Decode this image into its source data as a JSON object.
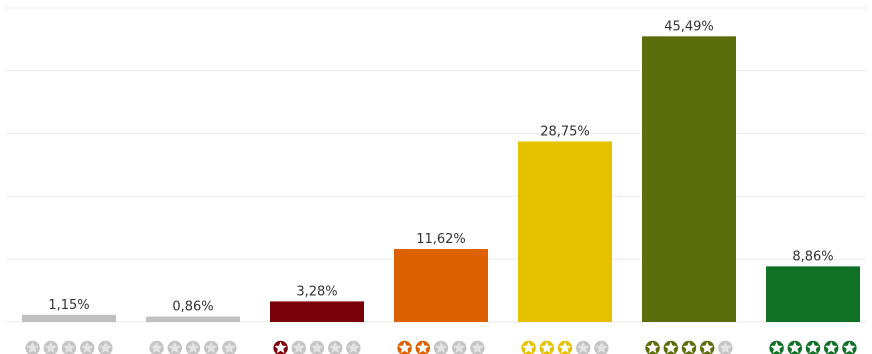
{
  "chart_data": {
    "type": "bar",
    "title": "",
    "xlabel": "",
    "ylabel": "",
    "ylim": [
      0,
      50
    ],
    "grid": true,
    "categories": [
      "0 stars",
      "0 stars",
      "1 star",
      "2 stars",
      "3 stars",
      "4 stars",
      "5 stars"
    ],
    "values": [
      1.15,
      0.86,
      3.28,
      11.62,
      28.75,
      45.49,
      8.86
    ],
    "value_labels": [
      "1,15%",
      "0,86%",
      "3,28%",
      "11,62%",
      "28,75%",
      "45,49%",
      "8,86%"
    ],
    "star_ratings": [
      0,
      0,
      1,
      2,
      3,
      4,
      5
    ],
    "colors": [
      "#c0c0c0",
      "#c0c0c0",
      "#7a0009",
      "#de6100",
      "#e5c100",
      "#5c6e0c",
      "#0f7026"
    ],
    "star_off_color": "#c4c4c4",
    "gridline_color": "#ebebeb"
  }
}
